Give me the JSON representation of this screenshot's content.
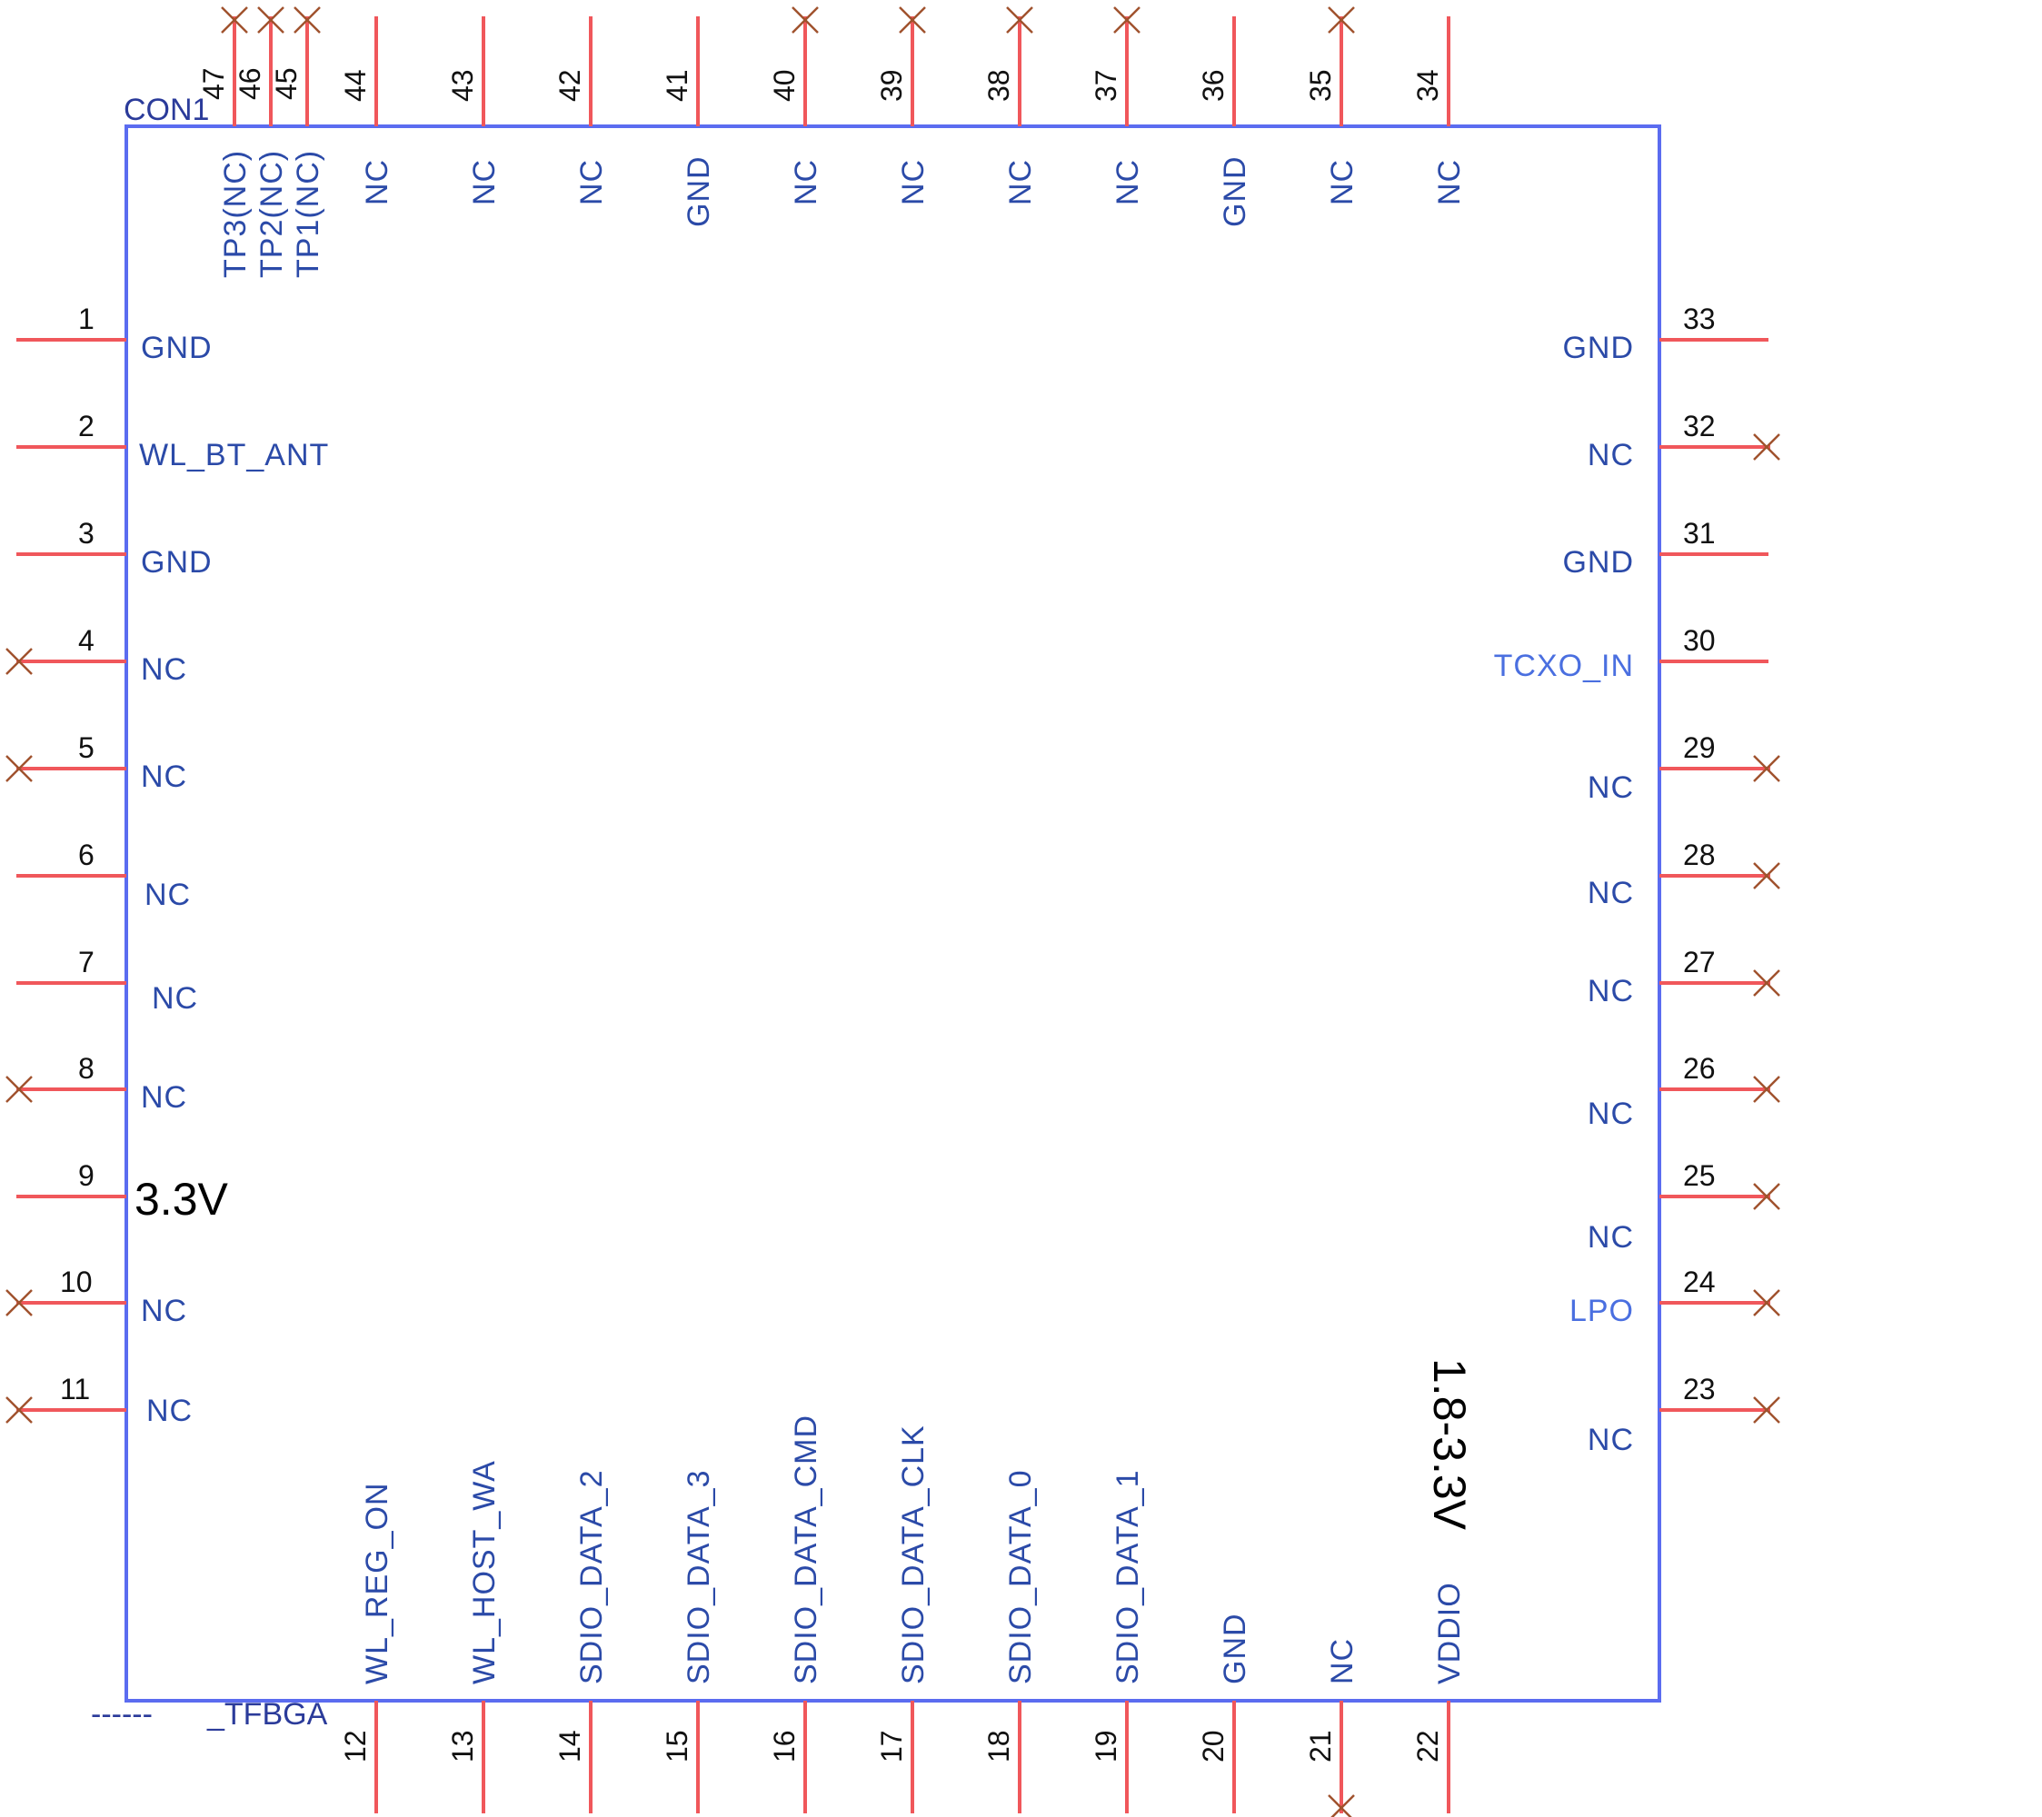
{
  "component": {
    "ref": "CON1",
    "package": "_TFBGA",
    "package_prefix": "------"
  },
  "notes": {
    "left_voltage": "3.3V",
    "right_voltage": "1.8-3.3V"
  },
  "pins": {
    "left": [
      {
        "num": "1",
        "name": "GND",
        "nc": false
      },
      {
        "num": "2",
        "name": "WL_BT_ANT",
        "nc": false
      },
      {
        "num": "3",
        "name": "GND",
        "nc": false
      },
      {
        "num": "4",
        "name": "NC",
        "nc": true
      },
      {
        "num": "5",
        "name": "NC",
        "nc": true
      },
      {
        "num": "6",
        "name": "NC",
        "nc": false
      },
      {
        "num": "7",
        "name": "NC",
        "nc": false
      },
      {
        "num": "8",
        "name": "NC",
        "nc": true
      },
      {
        "num": "9",
        "name": "",
        "nc": false
      },
      {
        "num": "10",
        "name": "NC",
        "nc": true
      },
      {
        "num": "11",
        "name": "NC",
        "nc": true
      }
    ],
    "bottom": [
      {
        "num": "12",
        "name": "WL_REG_ON",
        "nc": false
      },
      {
        "num": "13",
        "name": "WL_HOST_WA",
        "nc": false
      },
      {
        "num": "14",
        "name": "SDIO_DATA_2",
        "nc": false
      },
      {
        "num": "15",
        "name": "SDIO_DATA_3",
        "nc": false
      },
      {
        "num": "16",
        "name": "SDIO_DATA_CMD",
        "nc": false
      },
      {
        "num": "17",
        "name": "SDIO_DATA_CLK",
        "nc": false
      },
      {
        "num": "18",
        "name": "SDIO_DATA_0",
        "nc": false
      },
      {
        "num": "19",
        "name": "SDIO_DATA_1",
        "nc": false
      },
      {
        "num": "20",
        "name": "GND",
        "nc": false
      },
      {
        "num": "21",
        "name": "NC",
        "nc": true
      },
      {
        "num": "22",
        "name": "VDDIO",
        "nc": false
      }
    ],
    "right": [
      {
        "num": "23",
        "name": "NC",
        "nc": true
      },
      {
        "num": "24",
        "name": "LPO",
        "nc": true
      },
      {
        "num": "25",
        "name": "NC",
        "nc": true
      },
      {
        "num": "26",
        "name": "NC",
        "nc": true
      },
      {
        "num": "27",
        "name": "NC",
        "nc": true
      },
      {
        "num": "28",
        "name": "NC",
        "nc": true
      },
      {
        "num": "29",
        "name": "NC",
        "nc": true
      },
      {
        "num": "30",
        "name": "TCXO_IN",
        "nc": false
      },
      {
        "num": "31",
        "name": "GND",
        "nc": false
      },
      {
        "num": "32",
        "name": "NC",
        "nc": true
      },
      {
        "num": "33",
        "name": "GND",
        "nc": false
      }
    ],
    "top": [
      {
        "num": "34",
        "name": "NC",
        "nc": false
      },
      {
        "num": "35",
        "name": "NC",
        "nc": true
      },
      {
        "num": "36",
        "name": "GND",
        "nc": false
      },
      {
        "num": "37",
        "name": "NC",
        "nc": true
      },
      {
        "num": "38",
        "name": "NC",
        "nc": true
      },
      {
        "num": "39",
        "name": "NC",
        "nc": true
      },
      {
        "num": "40",
        "name": "NC",
        "nc": true
      },
      {
        "num": "41",
        "name": "GND",
        "nc": false
      },
      {
        "num": "42",
        "name": "NC",
        "nc": false
      },
      {
        "num": "43",
        "name": "NC",
        "nc": false
      },
      {
        "num": "44",
        "name": "NC",
        "nc": false
      },
      {
        "num": "45",
        "name": "TP1(NC)",
        "nc": true
      },
      {
        "num": "46",
        "name": "TP2(NC)",
        "nc": true
      },
      {
        "num": "47",
        "name": "TP3(NC)",
        "nc": true
      }
    ]
  }
}
